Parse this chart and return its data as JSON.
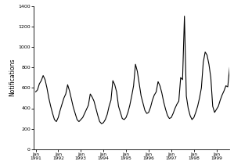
{
  "title": "",
  "ylabel": "Notifications",
  "ylim": [
    0,
    1400
  ],
  "yticks": [
    0,
    200,
    400,
    600,
    800,
    1000,
    1200,
    1400
  ],
  "xtick_labels": [
    "Jan\n1991",
    "Jan\n1992",
    "Jan\n1993",
    "Jan\n1994",
    "Jan\n1995",
    "Jan\n1996",
    "Jan\n1997",
    "Jan\n1998",
    "Jan\n1999"
  ],
  "line_color": "#000000",
  "line_width": 0.8,
  "background_color": "#ffffff",
  "values": [
    560,
    580,
    640,
    670,
    720,
    680,
    600,
    500,
    420,
    350,
    290,
    270,
    310,
    380,
    440,
    500,
    540,
    630,
    570,
    490,
    410,
    350,
    290,
    270,
    290,
    310,
    350,
    390,
    430,
    540,
    510,
    470,
    400,
    330,
    270,
    250,
    260,
    290,
    340,
    420,
    480,
    670,
    630,
    560,
    420,
    360,
    300,
    290,
    310,
    360,
    430,
    520,
    620,
    830,
    760,
    640,
    520,
    450,
    380,
    350,
    360,
    410,
    480,
    530,
    560,
    660,
    620,
    550,
    460,
    390,
    330,
    300,
    310,
    350,
    400,
    440,
    470,
    700,
    680,
    1300,
    520,
    400,
    330,
    290,
    310,
    360,
    420,
    500,
    600,
    850,
    950,
    920,
    830,
    700,
    420,
    360,
    390,
    420,
    480,
    530,
    570,
    620,
    610,
    800
  ]
}
